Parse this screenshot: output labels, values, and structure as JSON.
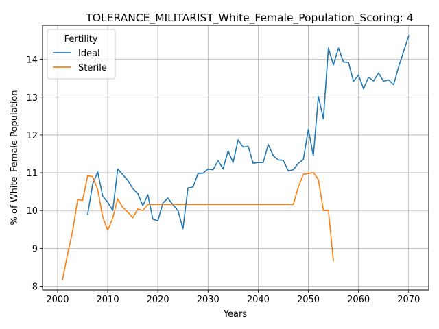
{
  "chart_data": {
    "type": "line",
    "title": "TOLERANCE_MILITARIST_White_Female_Population_Scoring: 4",
    "xlabel": "Years",
    "ylabel": "% of White_Female Population",
    "xlim": [
      1997,
      2074
    ],
    "ylim": [
      7.9,
      14.9
    ],
    "xticks": [
      2000,
      2010,
      2020,
      2030,
      2040,
      2050,
      2060,
      2070
    ],
    "yticks": [
      8,
      9,
      10,
      11,
      12,
      13,
      14
    ],
    "grid": true,
    "legend": {
      "title": "Fertility",
      "placement": "top-left"
    },
    "series": [
      {
        "name": "Ideal",
        "color": "#1f77b4",
        "x": [
          2006,
          2007,
          2008,
          2009,
          2010,
          2011,
          2012,
          2013,
          2014,
          2015,
          2016,
          2017,
          2018,
          2019,
          2020,
          2021,
          2022,
          2023,
          2024,
          2025,
          2026,
          2027,
          2028,
          2029,
          2030,
          2031,
          2032,
          2033,
          2034,
          2035,
          2036,
          2037,
          2038,
          2039,
          2040,
          2041,
          2042,
          2043,
          2044,
          2045,
          2046,
          2047,
          2048,
          2049,
          2050,
          2051,
          2052,
          2053,
          2054,
          2055,
          2056,
          2057,
          2058,
          2059,
          2060,
          2061,
          2062,
          2063,
          2064,
          2065,
          2066,
          2067,
          2068,
          2070
        ],
        "y": [
          9.9,
          10.7,
          11.02,
          10.38,
          10.22,
          10.0,
          11.1,
          10.95,
          10.8,
          10.58,
          10.45,
          10.13,
          10.42,
          9.77,
          9.73,
          10.2,
          10.33,
          10.15,
          10.0,
          9.52,
          10.6,
          10.62,
          10.98,
          10.99,
          11.1,
          11.08,
          11.32,
          11.1,
          11.58,
          11.27,
          11.87,
          11.68,
          11.7,
          11.25,
          11.27,
          11.27,
          11.75,
          11.45,
          11.34,
          11.33,
          11.05,
          11.08,
          11.25,
          11.35,
          12.15,
          11.45,
          13.02,
          12.43,
          14.3,
          13.85,
          14.3,
          13.93,
          13.92,
          13.42,
          13.59,
          13.22,
          13.53,
          13.43,
          13.64,
          13.42,
          13.46,
          13.33,
          13.8,
          14.62
        ]
      },
      {
        "name": "Sterile",
        "color": "#ff7f0e",
        "x": [
          2001,
          2002,
          2003,
          2004,
          2005,
          2006,
          2007,
          2008,
          2009,
          2010,
          2011,
          2012,
          2013,
          2014,
          2015,
          2016,
          2017,
          2018,
          2019,
          2020,
          2021,
          2022,
          2023,
          2024,
          2025,
          2026,
          2027,
          2028,
          2029,
          2030,
          2031,
          2032,
          2033,
          2034,
          2035,
          2036,
          2037,
          2038,
          2039,
          2040,
          2041,
          2042,
          2043,
          2044,
          2045,
          2046,
          2047,
          2048,
          2049,
          2050,
          2051,
          2052,
          2053,
          2054,
          2055
        ],
        "y": [
          8.18,
          8.85,
          9.45,
          10.29,
          10.27,
          10.92,
          10.9,
          10.55,
          9.83,
          9.48,
          9.8,
          10.31,
          10.08,
          9.96,
          9.81,
          10.04,
          10.0,
          10.16,
          10.16,
          10.16,
          10.16,
          10.16,
          10.16,
          10.16,
          10.16,
          10.16,
          10.16,
          10.16,
          10.16,
          10.16,
          10.16,
          10.16,
          10.16,
          10.16,
          10.16,
          10.16,
          10.16,
          10.16,
          10.16,
          10.16,
          10.16,
          10.16,
          10.16,
          10.16,
          10.16,
          10.16,
          10.16,
          10.62,
          10.96,
          10.98,
          11.01,
          10.82,
          10.0,
          10.0,
          8.67
        ]
      }
    ]
  }
}
